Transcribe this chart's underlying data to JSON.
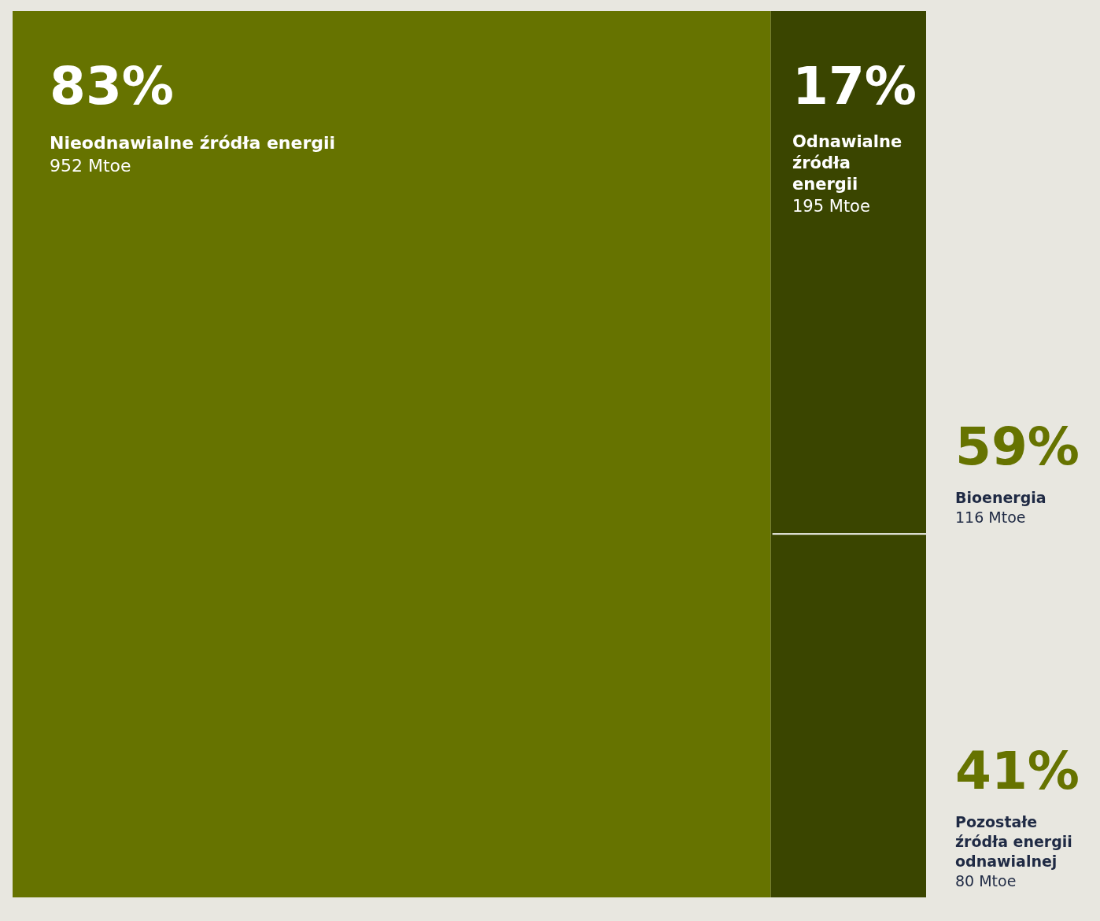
{
  "chart_data": {
    "type": "other",
    "categories": [
      "Nieodnawialne źródła energii",
      "Odnawialne źródła energii",
      "Bioenergia",
      "Pozostałe źródła energii odnawialnej"
    ],
    "values": [
      83,
      17,
      59,
      41
    ],
    "value_labels": [
      "83%",
      "17%",
      "59%",
      "41%"
    ],
    "annotations": [
      "952 Mtoe",
      "195 Mtoe",
      "116 Mtoe",
      "80 Mtoe"
    ],
    "colors": [
      "#667300",
      "#3a4500",
      "#667300",
      "#667300"
    ]
  }
}
